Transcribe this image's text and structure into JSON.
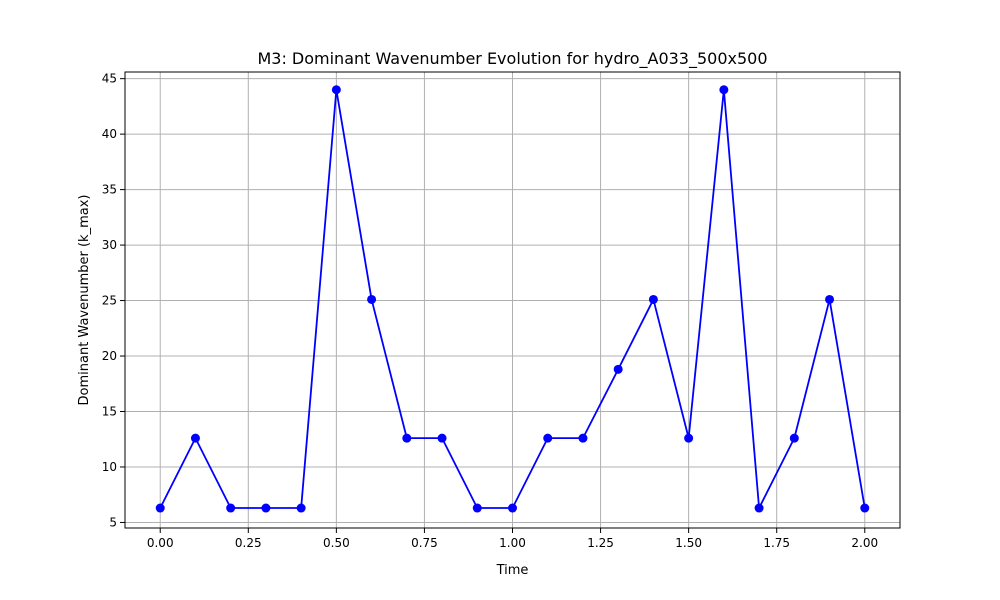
{
  "chart_data": {
    "type": "line",
    "title": "M3: Dominant Wavenumber Evolution for hydro_A033_500x500",
    "xlabel": "Time",
    "ylabel": "Dominant Wavenumber (k_max)",
    "xlim": [
      -0.1,
      2.1
    ],
    "ylim": [
      4.5,
      45.6
    ],
    "grid": true,
    "legend": "none",
    "xticks": [
      0.0,
      0.25,
      0.5,
      0.75,
      1.0,
      1.25,
      1.5,
      1.75,
      2.0
    ],
    "xtick_labels": [
      "0.00",
      "0.25",
      "0.50",
      "0.75",
      "1.00",
      "1.25",
      "1.50",
      "1.75",
      "2.00"
    ],
    "yticks": [
      5,
      10,
      15,
      20,
      25,
      30,
      35,
      40,
      45
    ],
    "ytick_labels": [
      "5",
      "10",
      "15",
      "20",
      "25",
      "30",
      "35",
      "40",
      "45"
    ],
    "series": [
      {
        "color": "#0000ff",
        "marker": "circle",
        "x": [
          0.0,
          0.1,
          0.2,
          0.3,
          0.4,
          0.5,
          0.6,
          0.7,
          0.8,
          0.9,
          1.0,
          1.1,
          1.2,
          1.3,
          1.4,
          1.5,
          1.6,
          1.7,
          1.8,
          1.9,
          2.0
        ],
        "y": [
          6.3,
          12.6,
          6.3,
          6.3,
          6.3,
          44.0,
          25.1,
          12.6,
          12.6,
          6.3,
          6.3,
          12.6,
          12.6,
          18.8,
          25.1,
          12.6,
          44.0,
          6.3,
          12.6,
          25.1,
          6.3
        ]
      }
    ]
  }
}
